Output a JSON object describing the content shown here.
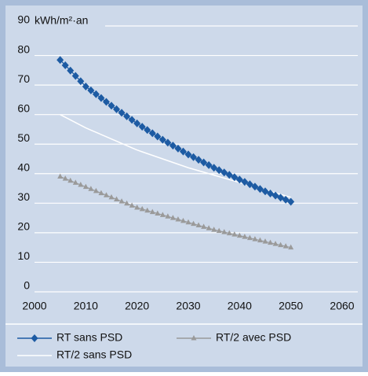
{
  "chart_data": {
    "type": "line",
    "y_label": "kWh/m²·an",
    "x": [
      2005,
      2006,
      2007,
      2008,
      2009,
      2010,
      2011,
      2012,
      2013,
      2014,
      2015,
      2016,
      2017,
      2018,
      2019,
      2020,
      2021,
      2022,
      2023,
      2024,
      2025,
      2026,
      2027,
      2028,
      2029,
      2030,
      2031,
      2032,
      2033,
      2034,
      2035,
      2036,
      2037,
      2038,
      2039,
      2040,
      2041,
      2042,
      2043,
      2044,
      2045,
      2046,
      2047,
      2048,
      2049,
      2050
    ],
    "series": [
      {
        "name": "RT sans PSD",
        "color": "#1d5ba3",
        "marker": "diamond",
        "values": [
          78.5,
          76.7,
          74.9,
          73.1,
          71.3,
          69.5,
          68.2,
          66.9,
          65.6,
          64.3,
          63,
          61.8,
          60.6,
          59.4,
          58.2,
          57,
          55.9,
          54.8,
          53.7,
          52.6,
          51.5,
          50.5,
          49.5,
          48.5,
          47.5,
          46.5,
          45.6,
          44.7,
          43.8,
          42.9,
          42,
          41.2,
          40.4,
          39.6,
          38.8,
          38,
          37.2,
          36.4,
          35.6,
          34.8,
          34,
          33.3,
          32.6,
          31.9,
          31.2,
          30.5
        ]
      },
      {
        "name": "RT/2 avec PSD",
        "color": "#9a9a9a",
        "marker": "triangle",
        "values": [
          39,
          38.3,
          37.6,
          36.9,
          36.2,
          35.5,
          34.8,
          34.1,
          33.4,
          32.7,
          32,
          31.3,
          30.6,
          29.9,
          29.2,
          28.5,
          28,
          27.5,
          27,
          26.5,
          26,
          25.5,
          25,
          24.5,
          24,
          23.5,
          23,
          22.5,
          22,
          21.5,
          21,
          20.6,
          20.2,
          19.8,
          19.4,
          19,
          18.6,
          18.2,
          17.8,
          17.4,
          17,
          16.6,
          16.2,
          15.8,
          15.4,
          15
        ]
      },
      {
        "name": "RT/2 sans PSD",
        "color": "#ffffff",
        "marker": "none",
        "values": [
          60,
          59.1,
          58.2,
          57.3,
          56.4,
          55.5,
          54.75,
          54,
          53.25,
          52.5,
          51.75,
          51,
          50.25,
          49.5,
          48.75,
          48,
          47.4,
          46.8,
          46.2,
          45.6,
          45,
          44.4,
          43.8,
          43.2,
          42.6,
          42,
          41.5,
          41,
          40.5,
          40,
          39.5,
          39,
          38.5,
          38,
          37.5,
          37,
          36.5,
          36,
          35.5,
          35,
          34.5,
          34,
          33.5,
          33,
          32.5,
          32
        ]
      }
    ],
    "xlim": [
      2000,
      2060
    ],
    "xticks": [
      2000,
      2010,
      2020,
      2030,
      2040,
      2050,
      2060
    ],
    "ylim": [
      0,
      90
    ],
    "yticks": [
      0,
      10,
      20,
      30,
      40,
      50,
      60,
      70,
      80,
      90
    ],
    "grid": true
  }
}
